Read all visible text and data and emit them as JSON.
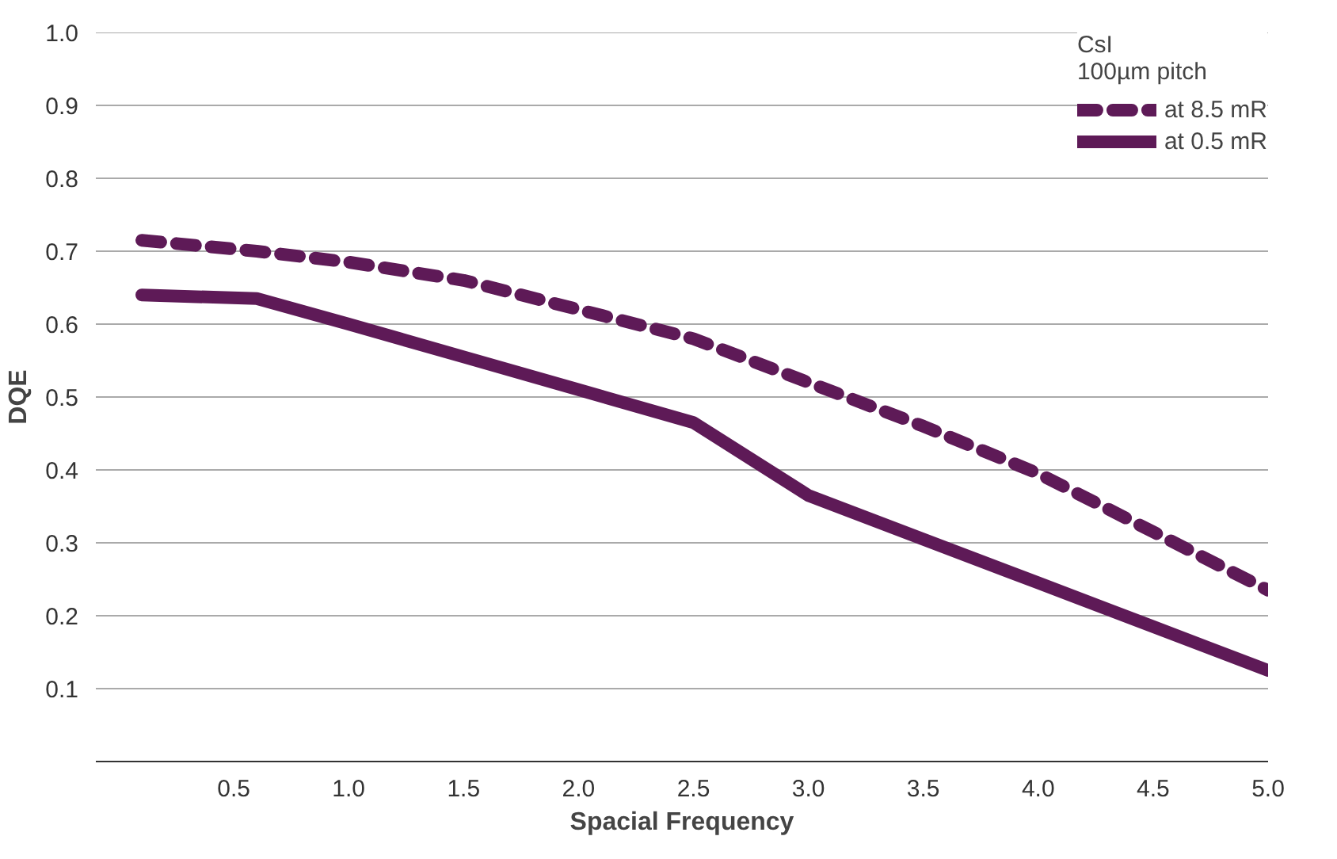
{
  "chart_data": {
    "type": "line",
    "xlabel": "Spacial Frequency",
    "ylabel": "DQE",
    "legend_title": "CsI\n100µm pitch",
    "xlim": [
      -0.1,
      5.0
    ],
    "ylim": [
      0,
      1.0
    ],
    "xticks": [
      0.5,
      {
        "value": 1,
        "label": "1.0"
      },
      1.5,
      {
        "value": 2,
        "label": "2.0"
      },
      2.5,
      {
        "value": 3,
        "label": "3.0"
      },
      3.5,
      {
        "value": 4,
        "label": "4.0"
      },
      4.5,
      {
        "value": 5,
        "label": "5.0"
      }
    ],
    "yticks": [
      0.1,
      0.2,
      0.3,
      0.4,
      0.5,
      0.6,
      0.7,
      0.8,
      0.9,
      {
        "value": 1,
        "label": "1.0"
      }
    ],
    "grid": "y",
    "legend": "top right",
    "series": [
      {
        "name": "at 8.5 mR",
        "color": "#5e1a57",
        "line_style": "dashed",
        "x": [
          0.1,
          0.6,
          1.0,
          1.5,
          2.0,
          2.5,
          3.0,
          3.5,
          4.0,
          4.5,
          5.0
        ],
        "values": [
          0.715,
          0.7,
          0.685,
          0.66,
          0.62,
          0.58,
          0.52,
          0.46,
          0.395,
          0.315,
          0.235
        ]
      },
      {
        "name": "at 0.5 mR",
        "color": "#5e1a57",
        "line_style": "solid",
        "x": [
          0.1,
          0.6,
          1.0,
          1.5,
          2.0,
          2.5,
          3.0,
          3.5,
          4.0,
          4.5,
          5.0
        ],
        "values": [
          0.64,
          0.635,
          0.6,
          0.555,
          0.51,
          0.465,
          0.365,
          0.305,
          0.245,
          0.185,
          0.125
        ]
      }
    ]
  }
}
